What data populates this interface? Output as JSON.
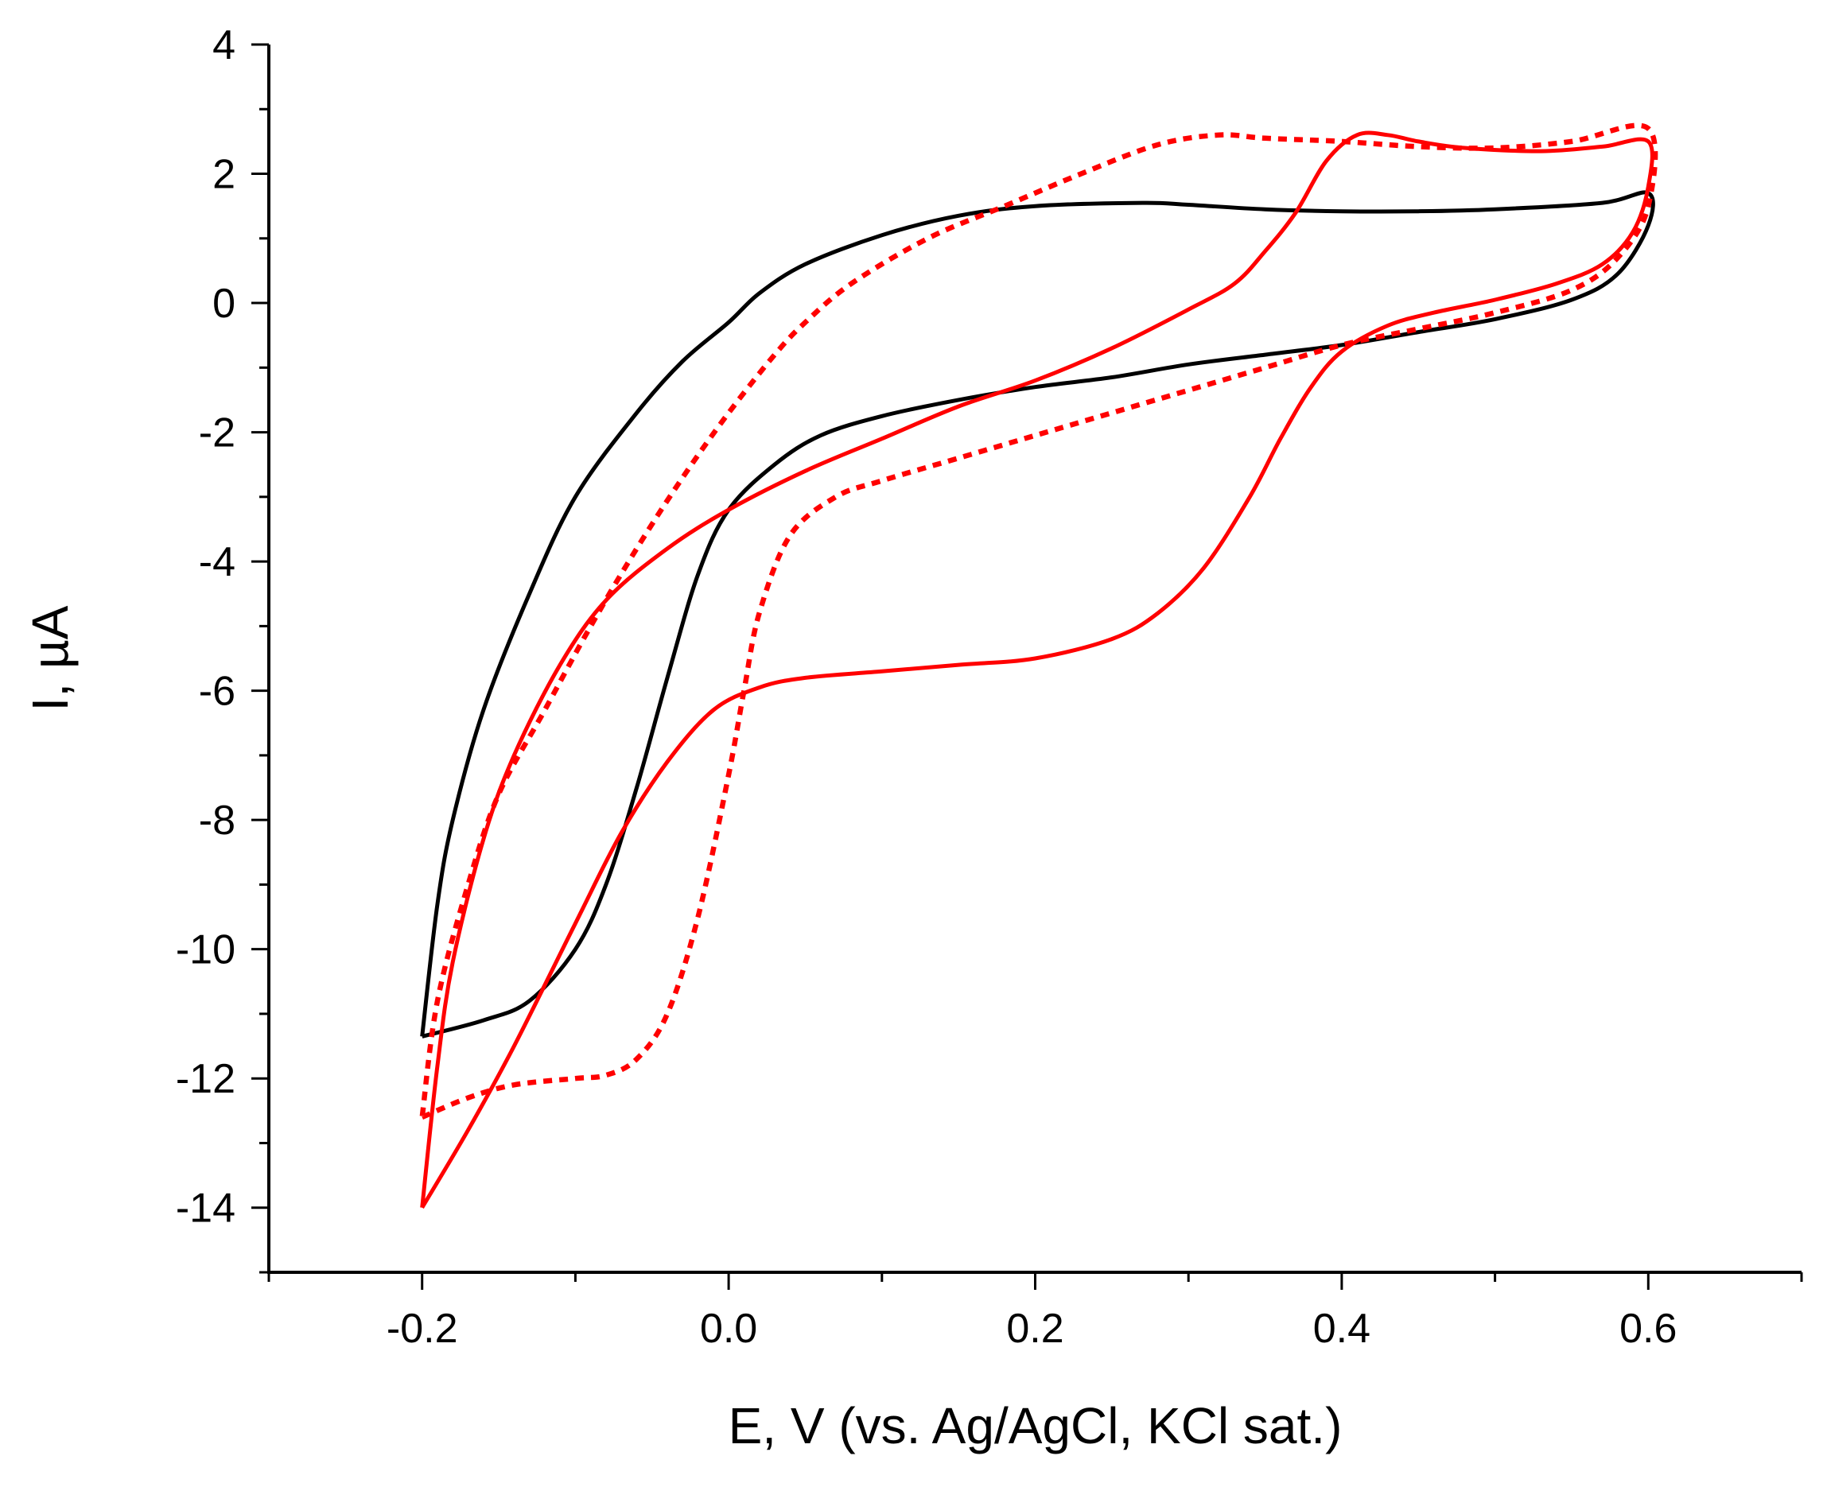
{
  "chart_data": {
    "type": "line",
    "title": "",
    "xlabel": "E, V (vs. Ag/AgCl, KCl sat.)",
    "ylabel": "I, µA",
    "xlim": [
      -0.3,
      0.7
    ],
    "ylim": [
      -15,
      4
    ],
    "x_ticks": [
      -0.2,
      0.0,
      0.2,
      0.4,
      0.6
    ],
    "x_tick_labels": [
      "-0.2",
      "0.0",
      "0.2",
      "0.4",
      "0.6"
    ],
    "y_ticks": [
      4,
      2,
      0,
      -2,
      -4,
      -6,
      -8,
      -10,
      -12,
      -14
    ],
    "y_tick_labels": [
      "4",
      "2",
      "0",
      "-2",
      "-4",
      "-6",
      "-8",
      "-10",
      "-12",
      "-14"
    ],
    "x_minor_step": 0.1,
    "y_minor_step": 1,
    "grid": false,
    "series": [
      {
        "name": "black solid",
        "color": "#000000",
        "style": "solid",
        "points": [
          [
            -0.2,
            -11.35
          ],
          [
            -0.16,
            -11.1
          ],
          [
            -0.13,
            -10.8
          ],
          [
            -0.1,
            -10.0
          ],
          [
            -0.08,
            -9.0
          ],
          [
            -0.06,
            -7.5
          ],
          [
            -0.04,
            -5.8
          ],
          [
            -0.02,
            -4.2
          ],
          [
            0.0,
            -3.2
          ],
          [
            0.03,
            -2.5
          ],
          [
            0.06,
            -2.05
          ],
          [
            0.1,
            -1.75
          ],
          [
            0.15,
            -1.5
          ],
          [
            0.2,
            -1.3
          ],
          [
            0.25,
            -1.15
          ],
          [
            0.3,
            -0.95
          ],
          [
            0.35,
            -0.8
          ],
          [
            0.4,
            -0.65
          ],
          [
            0.45,
            -0.45
          ],
          [
            0.5,
            -0.25
          ],
          [
            0.55,
            0.05
          ],
          [
            0.58,
            0.45
          ],
          [
            0.6,
            1.2
          ],
          [
            0.6,
            1.7
          ],
          [
            0.57,
            1.55
          ],
          [
            0.5,
            1.45
          ],
          [
            0.45,
            1.42
          ],
          [
            0.4,
            1.42
          ],
          [
            0.35,
            1.45
          ],
          [
            0.3,
            1.52
          ],
          [
            0.27,
            1.55
          ],
          [
            0.2,
            1.5
          ],
          [
            0.15,
            1.35
          ],
          [
            0.1,
            1.05
          ],
          [
            0.05,
            0.6
          ],
          [
            0.02,
            0.15
          ],
          [
            0.0,
            -0.3
          ],
          [
            -0.03,
            -0.9
          ],
          [
            -0.06,
            -1.7
          ],
          [
            -0.1,
            -3.0
          ],
          [
            -0.13,
            -4.5
          ],
          [
            -0.16,
            -6.3
          ],
          [
            -0.18,
            -8.0
          ],
          [
            -0.19,
            -9.3
          ],
          [
            -0.2,
            -11.35
          ]
        ]
      },
      {
        "name": "red solid",
        "color": "#ff0000",
        "style": "solid",
        "points": [
          [
            -0.2,
            -14.0
          ],
          [
            -0.17,
            -12.8
          ],
          [
            -0.14,
            -11.5
          ],
          [
            -0.1,
            -9.6
          ],
          [
            -0.07,
            -8.2
          ],
          [
            -0.04,
            -7.1
          ],
          [
            -0.01,
            -6.3
          ],
          [
            0.02,
            -5.95
          ],
          [
            0.05,
            -5.8
          ],
          [
            0.1,
            -5.7
          ],
          [
            0.15,
            -5.6
          ],
          [
            0.2,
            -5.5
          ],
          [
            0.25,
            -5.2
          ],
          [
            0.28,
            -4.8
          ],
          [
            0.31,
            -4.1
          ],
          [
            0.34,
            -3.0
          ],
          [
            0.36,
            -2.1
          ],
          [
            0.38,
            -1.3
          ],
          [
            0.4,
            -0.75
          ],
          [
            0.43,
            -0.35
          ],
          [
            0.46,
            -0.15
          ],
          [
            0.5,
            0.05
          ],
          [
            0.54,
            0.3
          ],
          [
            0.57,
            0.6
          ],
          [
            0.59,
            1.1
          ],
          [
            0.6,
            1.8
          ],
          [
            0.6,
            2.5
          ],
          [
            0.57,
            2.42
          ],
          [
            0.53,
            2.35
          ],
          [
            0.48,
            2.4
          ],
          [
            0.45,
            2.5
          ],
          [
            0.43,
            2.6
          ],
          [
            0.41,
            2.6
          ],
          [
            0.39,
            2.2
          ],
          [
            0.37,
            1.4
          ],
          [
            0.35,
            0.8
          ],
          [
            0.33,
            0.3
          ],
          [
            0.3,
            -0.1
          ],
          [
            0.25,
            -0.7
          ],
          [
            0.2,
            -1.2
          ],
          [
            0.15,
            -1.6
          ],
          [
            0.1,
            -2.1
          ],
          [
            0.05,
            -2.6
          ],
          [
            0.0,
            -3.2
          ],
          [
            -0.04,
            -3.8
          ],
          [
            -0.08,
            -4.6
          ],
          [
            -0.11,
            -5.6
          ],
          [
            -0.14,
            -7.0
          ],
          [
            -0.16,
            -8.3
          ],
          [
            -0.18,
            -10.2
          ],
          [
            -0.19,
            -11.8
          ],
          [
            -0.2,
            -14.0
          ]
        ]
      },
      {
        "name": "red dotted",
        "color": "#ff0000",
        "style": "dotted",
        "points": [
          [
            -0.2,
            -12.6
          ],
          [
            -0.17,
            -12.3
          ],
          [
            -0.14,
            -12.1
          ],
          [
            -0.1,
            -12.0
          ],
          [
            -0.08,
            -11.95
          ],
          [
            -0.06,
            -11.7
          ],
          [
            -0.04,
            -11.0
          ],
          [
            -0.02,
            -9.5
          ],
          [
            0.0,
            -7.3
          ],
          [
            0.01,
            -6.0
          ],
          [
            0.02,
            -4.8
          ],
          [
            0.04,
            -3.6
          ],
          [
            0.07,
            -3.0
          ],
          [
            0.1,
            -2.75
          ],
          [
            0.15,
            -2.4
          ],
          [
            0.2,
            -2.05
          ],
          [
            0.25,
            -1.7
          ],
          [
            0.3,
            -1.35
          ],
          [
            0.35,
            -1.0
          ],
          [
            0.4,
            -0.65
          ],
          [
            0.45,
            -0.4
          ],
          [
            0.5,
            -0.15
          ],
          [
            0.55,
            0.2
          ],
          [
            0.58,
            0.7
          ],
          [
            0.6,
            1.5
          ],
          [
            0.6,
            2.7
          ],
          [
            0.55,
            2.5
          ],
          [
            0.5,
            2.4
          ],
          [
            0.45,
            2.42
          ],
          [
            0.4,
            2.5
          ],
          [
            0.35,
            2.55
          ],
          [
            0.32,
            2.6
          ],
          [
            0.28,
            2.45
          ],
          [
            0.23,
            2.0
          ],
          [
            0.18,
            1.5
          ],
          [
            0.13,
            1.0
          ],
          [
            0.08,
            0.3
          ],
          [
            0.05,
            -0.3
          ],
          [
            0.03,
            -0.8
          ],
          [
            0.0,
            -1.7
          ],
          [
            -0.03,
            -2.7
          ],
          [
            -0.06,
            -3.8
          ],
          [
            -0.09,
            -5.0
          ],
          [
            -0.12,
            -6.3
          ],
          [
            -0.15,
            -7.6
          ],
          [
            -0.17,
            -9.0
          ],
          [
            -0.19,
            -10.8
          ],
          [
            -0.2,
            -12.6
          ]
        ]
      }
    ]
  }
}
